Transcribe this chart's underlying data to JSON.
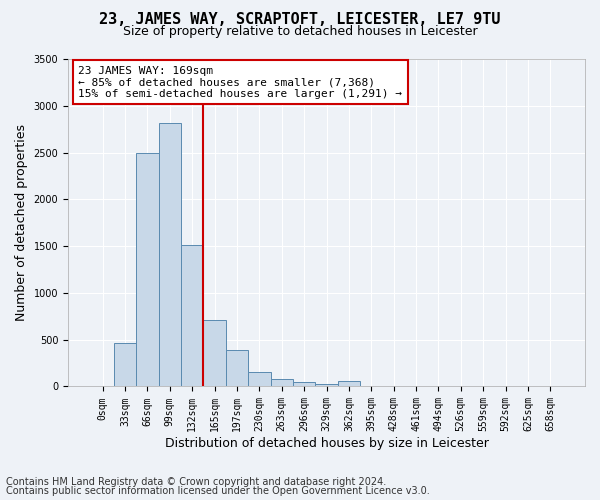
{
  "title": "23, JAMES WAY, SCRAPTOFT, LEICESTER, LE7 9TU",
  "subtitle": "Size of property relative to detached houses in Leicester",
  "xlabel": "Distribution of detached houses by size in Leicester",
  "ylabel": "Number of detached properties",
  "bar_values": [
    0,
    460,
    2500,
    2820,
    1510,
    710,
    390,
    150,
    80,
    45,
    25,
    60,
    10,
    0,
    0,
    0,
    0,
    0,
    0,
    0,
    0
  ],
  "bar_labels": [
    "0sqm",
    "33sqm",
    "66sqm",
    "99sqm",
    "132sqm",
    "165sqm",
    "197sqm",
    "230sqm",
    "263sqm",
    "296sqm",
    "329sqm",
    "362sqm",
    "395sqm",
    "428sqm",
    "461sqm",
    "494sqm",
    "526sqm",
    "559sqm",
    "592sqm",
    "625sqm",
    "658sqm"
  ],
  "ylim": [
    0,
    3500
  ],
  "bar_color": "#c8d8e8",
  "bar_edgecolor": "#5a8ab0",
  "vline_x_index": 5,
  "vline_color": "#cc0000",
  "annotation_text": "23 JAMES WAY: 169sqm\n← 85% of detached houses are smaller (7,368)\n15% of semi-detached houses are larger (1,291) →",
  "annotation_box_edgecolor": "#cc0000",
  "annotation_fontsize": 8,
  "footnote1": "Contains HM Land Registry data © Crown copyright and database right 2024.",
  "footnote2": "Contains public sector information licensed under the Open Government Licence v3.0.",
  "bg_color": "#eef2f7",
  "plot_bg_color": "#eef2f7",
  "title_fontsize": 11,
  "subtitle_fontsize": 9,
  "xlabel_fontsize": 9,
  "ylabel_fontsize": 9,
  "tick_fontsize": 7,
  "footnote_fontsize": 7,
  "yticks": [
    0,
    500,
    1000,
    1500,
    2000,
    2500,
    3000,
    3500
  ]
}
